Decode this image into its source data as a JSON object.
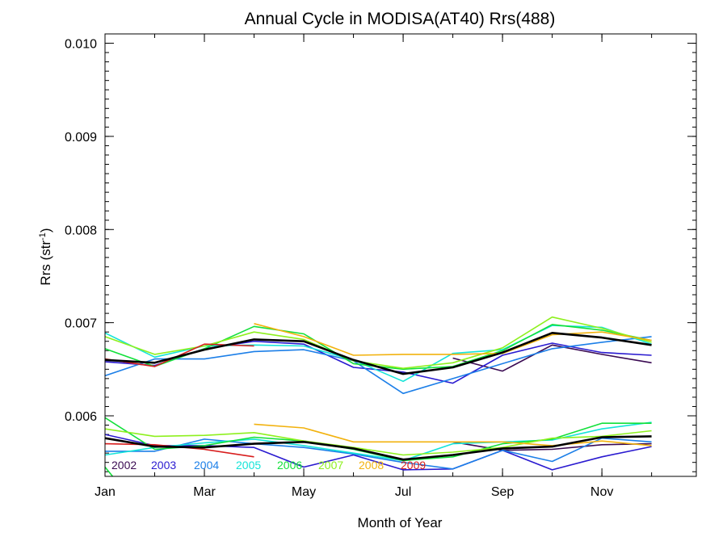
{
  "chart_data": {
    "type": "line",
    "title": "Annual Cycle in MODISA(AT40) Rrs(488)",
    "xlabel": "Month of Year",
    "ylabel_base": "Rrs (str",
    "ylabel_sup": "-1",
    "ylabel_close": ")",
    "xlim": [
      1,
      12.9
    ],
    "ylim": [
      0.00535,
      0.0101
    ],
    "x_ticks": [
      {
        "v": 1,
        "label": "Jan"
      },
      {
        "v": 3,
        "label": "Mar"
      },
      {
        "v": 5,
        "label": "May"
      },
      {
        "v": 7,
        "label": "Jul"
      },
      {
        "v": 9,
        "label": "Sep"
      },
      {
        "v": 11,
        "label": "Nov"
      }
    ],
    "y_ticks": [
      {
        "v": 0.006,
        "label": "0.006"
      },
      {
        "v": 0.007,
        "label": "0.007"
      },
      {
        "v": 0.008,
        "label": "0.008"
      },
      {
        "v": 0.009,
        "label": "0.009"
      },
      {
        "v": 0.01,
        "label": "0.010"
      }
    ],
    "legend_position": "bottom-left, inside plot",
    "series": [
      {
        "name": "2002",
        "color": "#3a0a52",
        "upper": [
          null,
          null,
          null,
          null,
          null,
          null,
          null,
          6.62,
          6.48,
          6.76,
          6.66,
          6.57
        ],
        "lower": [
          null,
          null,
          null,
          null,
          null,
          null,
          null,
          5.72,
          5.63,
          5.64,
          5.69,
          5.7
        ]
      },
      {
        "name": "2003",
        "color": "#2a1ad0",
        "upper": [
          6.58,
          6.54,
          6.72,
          6.8,
          6.77,
          6.52,
          6.47,
          6.35,
          6.65,
          6.78,
          6.68,
          6.65
        ],
        "lower": [
          5.8,
          5.68,
          5.68,
          5.66,
          5.45,
          5.58,
          5.42,
          5.43,
          5.63,
          5.42,
          5.56,
          5.67
        ]
      },
      {
        "name": "2004",
        "color": "#1c7fe8",
        "upper": [
          6.43,
          6.61,
          6.61,
          6.69,
          6.71,
          6.59,
          6.24,
          6.4,
          6.56,
          6.72,
          6.79,
          6.85
        ],
        "lower": [
          5.62,
          5.62,
          5.75,
          5.7,
          5.66,
          5.59,
          5.5,
          5.43,
          5.63,
          5.51,
          5.76,
          5.72
        ]
      },
      {
        "name": "2005",
        "color": "#14e4d8",
        "upper": [
          6.89,
          6.63,
          6.75,
          6.76,
          6.75,
          6.6,
          6.37,
          6.67,
          6.71,
          6.97,
          6.95,
          6.77
        ],
        "lower": [
          5.58,
          5.66,
          5.71,
          5.75,
          5.68,
          5.6,
          5.52,
          5.7,
          5.72,
          5.74,
          5.86,
          5.93
        ]
      },
      {
        "name": "2006",
        "color": "#12e03a",
        "upper": [
          6.72,
          6.53,
          6.72,
          6.96,
          6.88,
          6.56,
          6.5,
          6.53,
          6.7,
          6.98,
          6.92,
          6.81
        ],
        "lower": [
          5.98,
          5.64,
          5.68,
          5.77,
          5.73,
          5.64,
          5.52,
          5.56,
          5.7,
          5.75,
          5.92,
          5.92
        ]
      },
      {
        "name": "2007",
        "color": "#8ef01e",
        "upper": [
          6.85,
          6.66,
          6.75,
          6.9,
          6.82,
          6.59,
          6.51,
          6.57,
          6.73,
          7.06,
          6.94,
          6.79
        ],
        "lower": [
          5.86,
          5.78,
          5.79,
          5.82,
          5.73,
          5.66,
          5.58,
          5.61,
          5.66,
          5.76,
          5.78,
          5.84
        ]
      },
      {
        "name": "2008",
        "color": "#f2b20e",
        "upper": [
          null,
          null,
          null,
          6.99,
          6.85,
          6.65,
          6.66,
          6.66,
          6.67,
          6.87,
          6.9,
          6.81
        ],
        "lower": [
          null,
          null,
          null,
          5.91,
          5.87,
          5.72,
          5.72,
          5.72,
          5.72,
          5.68,
          5.73,
          5.68
        ]
      },
      {
        "name": "2009",
        "color": "#d81e1e",
        "upper": [
          6.61,
          6.53,
          6.77,
          6.75,
          null,
          null,
          null,
          null,
          null,
          null,
          null,
          null
        ],
        "lower": [
          5.7,
          5.69,
          5.64,
          5.56,
          null,
          null,
          null,
          null,
          null,
          null,
          null,
          null
        ]
      },
      {
        "name": "",
        "color": "#000000",
        "upper": [
          6.6,
          6.57,
          6.71,
          6.82,
          6.8,
          6.6,
          6.45,
          6.52,
          6.68,
          6.89,
          6.84,
          6.76
        ],
        "lower": [
          5.76,
          5.67,
          5.66,
          5.7,
          5.72,
          5.65,
          5.53,
          5.58,
          5.65,
          5.67,
          5.77,
          5.78
        ]
      }
    ],
    "value_scale": "values above are in units of 0.001 sr^-1"
  }
}
